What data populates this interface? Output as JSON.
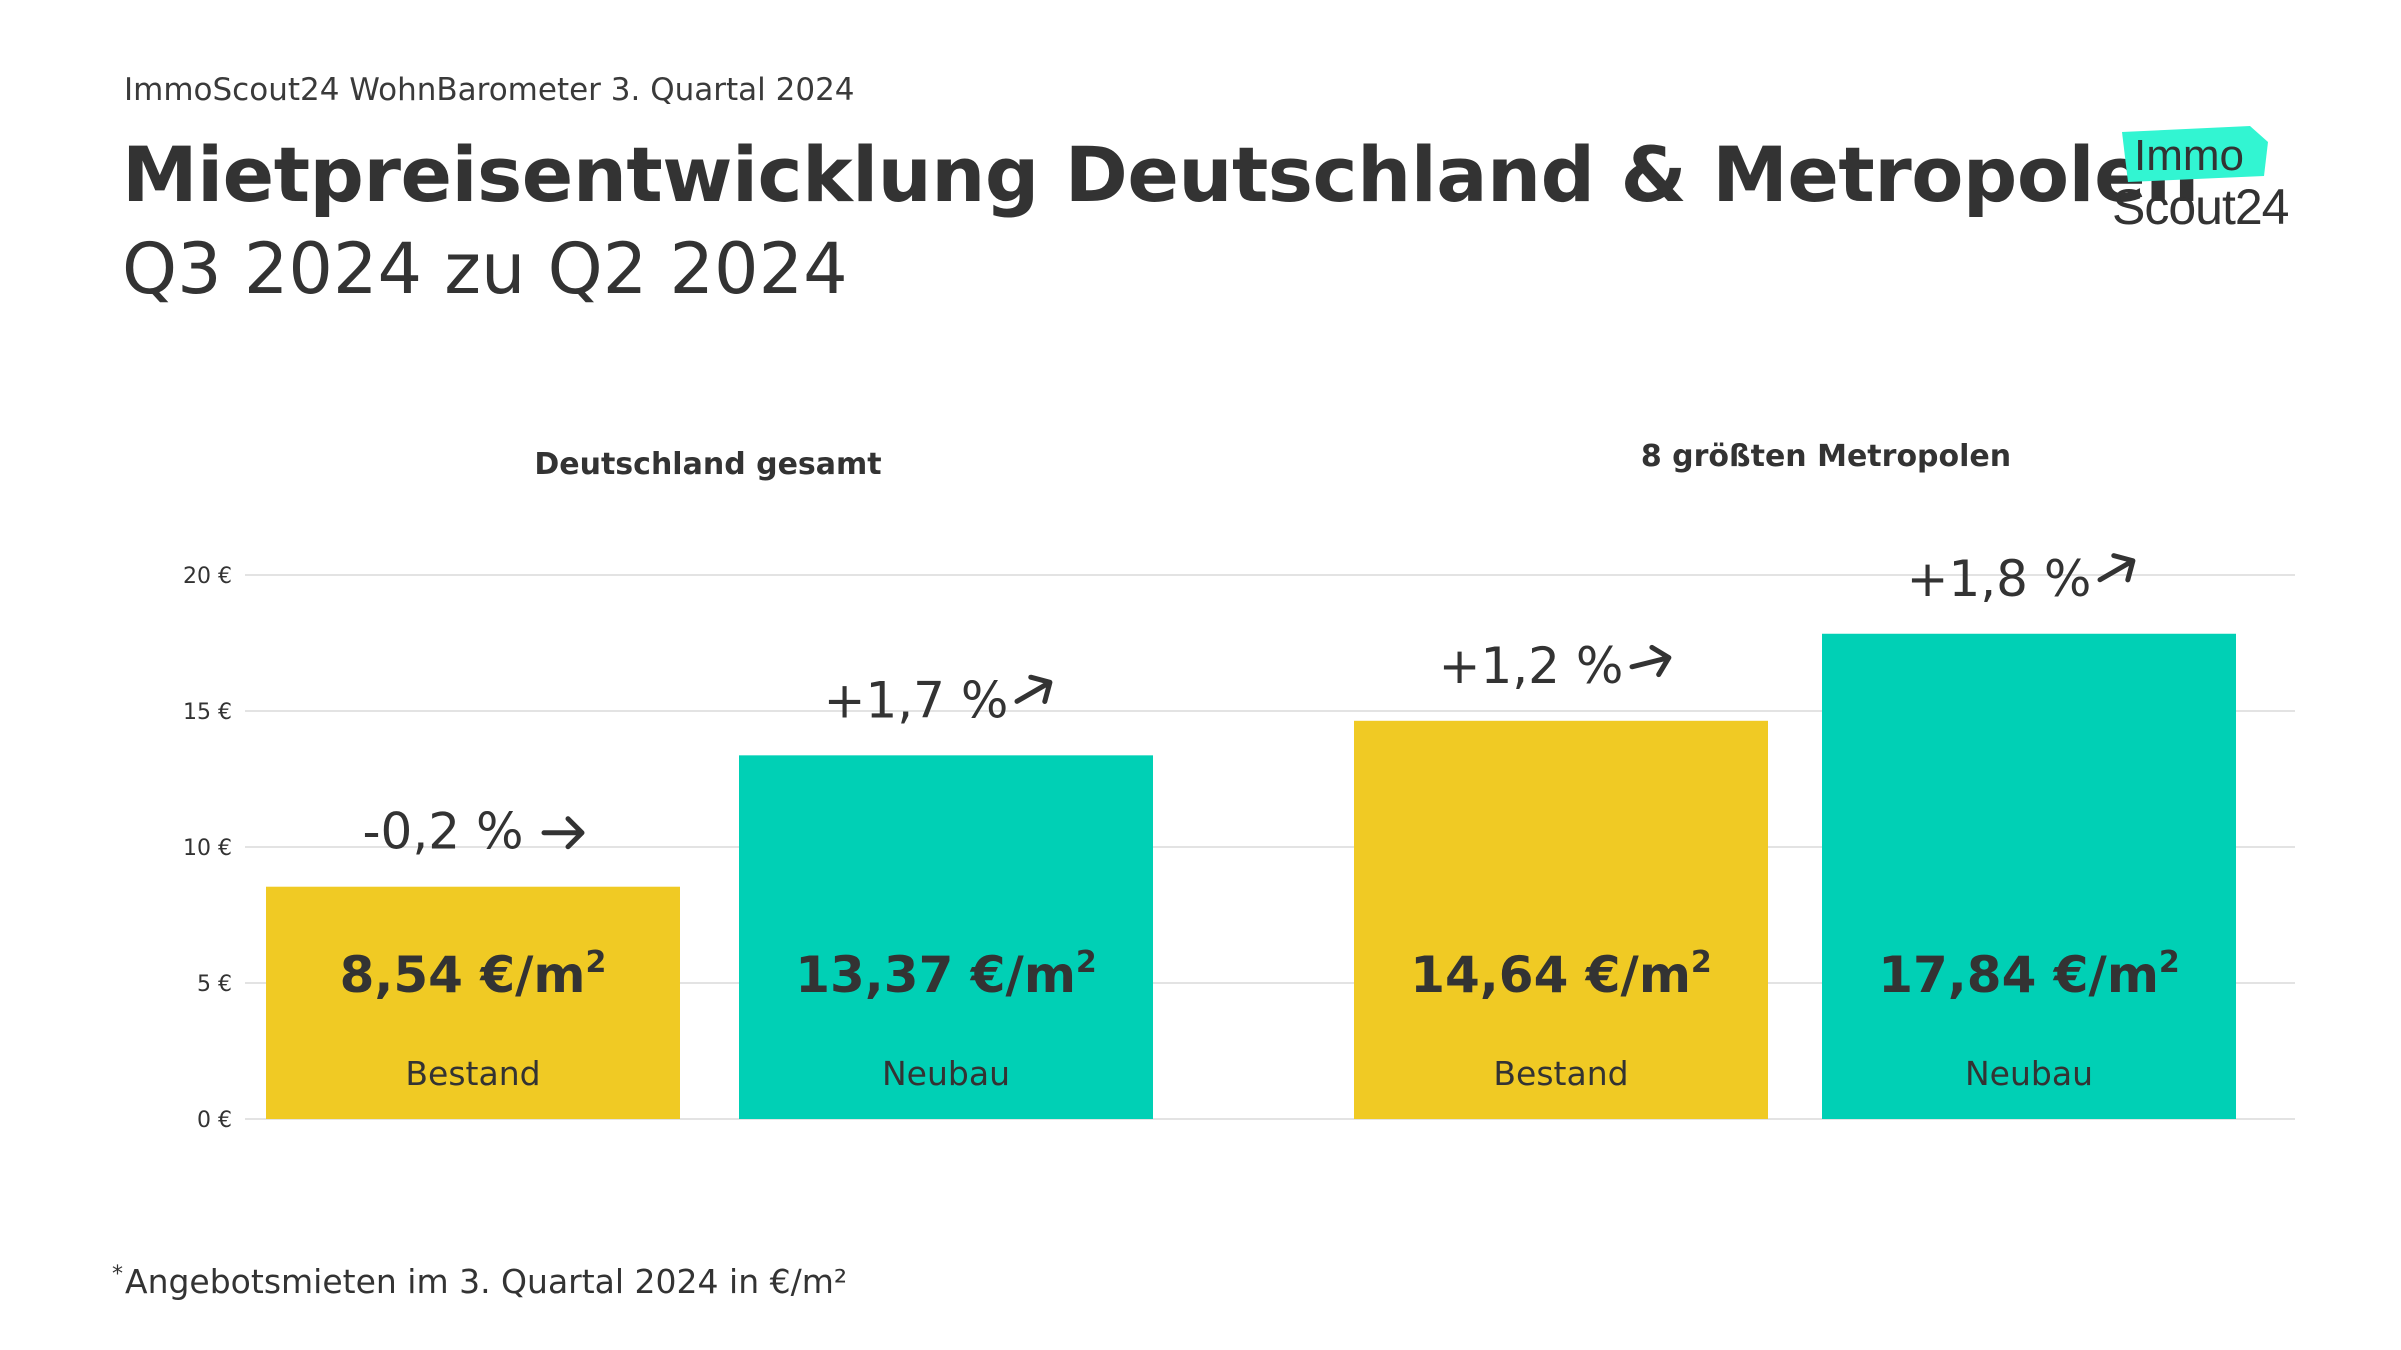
{
  "header": {
    "supertitle": "ImmoScout24 WohnBarometer 3. Quartal 2024",
    "title": "Mietpreisentwicklung Deutschland & Metropolen",
    "subtitle": "Q3 2024 zu Q2 2024"
  },
  "logo": {
    "line1": "Immo",
    "line2": "Scout24",
    "accent": "#32f5d2",
    "color": "#333333"
  },
  "footnote": {
    "marker": "*",
    "text": "Angebotsmieten im 3. Quartal 2024 in €/m²"
  },
  "chart_data": {
    "type": "bar",
    "groups": [
      {
        "title": "Deutschland gesamt",
        "categories": [
          "Bestand",
          "Neubau"
        ]
      },
      {
        "title": "8 größten Metropolen",
        "categories": [
          "Bestand",
          "Neubau"
        ]
      }
    ],
    "bars": [
      {
        "group": 0,
        "category": "Bestand",
        "value": 8.54,
        "value_label": "8,54 €/m",
        "change_label": "-0,2 %",
        "change_direction": "flat",
        "color": "#f0ca24"
      },
      {
        "group": 0,
        "category": "Neubau",
        "value": 13.37,
        "value_label": "13,37 €/m",
        "change_label": "+1,7 %",
        "change_direction": "up",
        "color": "#00d0b5"
      },
      {
        "group": 1,
        "category": "Bestand",
        "value": 14.64,
        "value_label": "14,64 €/m",
        "change_label": "+1,2 %",
        "change_direction": "up-slight",
        "color": "#f0ca24"
      },
      {
        "group": 1,
        "category": "Neubau",
        "value": 17.84,
        "value_label": "17,84 €/m",
        "change_label": "+1,8 %",
        "change_direction": "up",
        "color": "#00d0b5"
      }
    ],
    "value_superscript": "2",
    "yticks": [
      0,
      5,
      10,
      15,
      20
    ],
    "ytick_labels": [
      "0 €",
      "5 €",
      "10 €",
      "15 €",
      "20 €"
    ],
    "ylim": [
      0,
      20
    ],
    "grid": true,
    "colors": {
      "bestand": "#f0ca24",
      "neubau": "#00d0b5",
      "grid": "#e3e3e3",
      "text": "#333333"
    }
  }
}
